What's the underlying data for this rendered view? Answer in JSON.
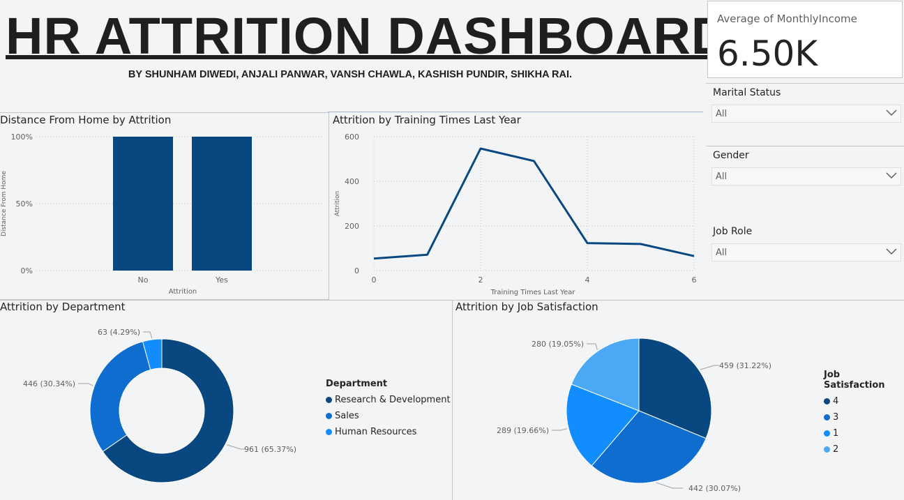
{
  "header": {
    "title": "HR ATTRITION DASHBOARD",
    "subtitle": "BY SHUNHAM DIWEDI, ANJALI PANWAR, VANSH CHAWLA, KASHISH PUNDIR, SHIKHA RAI."
  },
  "kpi": {
    "label": "Average of MonthlyIncome",
    "value": "6.50K"
  },
  "slicers": [
    {
      "title": "Marital Status",
      "value": "All"
    },
    {
      "title": "Gender",
      "value": "All"
    },
    {
      "title": "Job Role",
      "value": "All"
    }
  ],
  "colors": {
    "dark_blue": "#094780",
    "mid_blue": "#0f6dcf",
    "blue": "#118dff",
    "light_blue": "#4aa8f5"
  },
  "chart_data": [
    {
      "type": "bar",
      "title": "Distance From Home by Attrition",
      "xlabel": "Attrition",
      "ylabel": "Distance From Home",
      "categories": [
        "No",
        "Yes"
      ],
      "values": [
        100,
        100
      ],
      "yticks": [
        "0%",
        "50%",
        "100%"
      ],
      "ylim": [
        0,
        100
      ],
      "grid": true
    },
    {
      "type": "line",
      "title": "Attrition by Training Times Last Year",
      "xlabel": "Training Times Last Year",
      "ylabel": "Attrition",
      "x": [
        0,
        1,
        2,
        3,
        4,
        5,
        6
      ],
      "values": [
        54,
        71,
        547,
        491,
        123,
        119,
        65
      ],
      "xticks": [
        "0",
        "2",
        "4",
        "6"
      ],
      "yticks": [
        "0",
        "200",
        "400",
        "600"
      ],
      "xlim": [
        0,
        6
      ],
      "ylim": [
        0,
        600
      ],
      "grid": true
    },
    {
      "type": "pie",
      "variant": "donut",
      "title": "Attrition by Department",
      "legend_title": "Department",
      "legend_position": "right",
      "slices": [
        {
          "label": "Research & Development",
          "value": 961,
          "display": "961 (65.37%)",
          "color": "#094780"
        },
        {
          "label": "Sales",
          "value": 446,
          "display": "446 (30.34%)",
          "color": "#0f6dcf"
        },
        {
          "label": "Human Resources",
          "value": 63,
          "display": "63 (4.29%)",
          "color": "#118dff"
        }
      ]
    },
    {
      "type": "pie",
      "title": "Attrition by Job Satisfaction",
      "legend_title": "Job Satisfaction",
      "legend_position": "right",
      "slices": [
        {
          "label": "4",
          "value": 459,
          "display": "459 (31.22%)",
          "color": "#094780"
        },
        {
          "label": "3",
          "value": 442,
          "display": "442 (30.07%)",
          "color": "#0f6dcf"
        },
        {
          "label": "1",
          "value": 289,
          "display": "289 (19.66%)",
          "color": "#118dff"
        },
        {
          "label": "2",
          "value": 280,
          "display": "280 (19.05%)",
          "color": "#4aa8f5"
        }
      ]
    }
  ]
}
